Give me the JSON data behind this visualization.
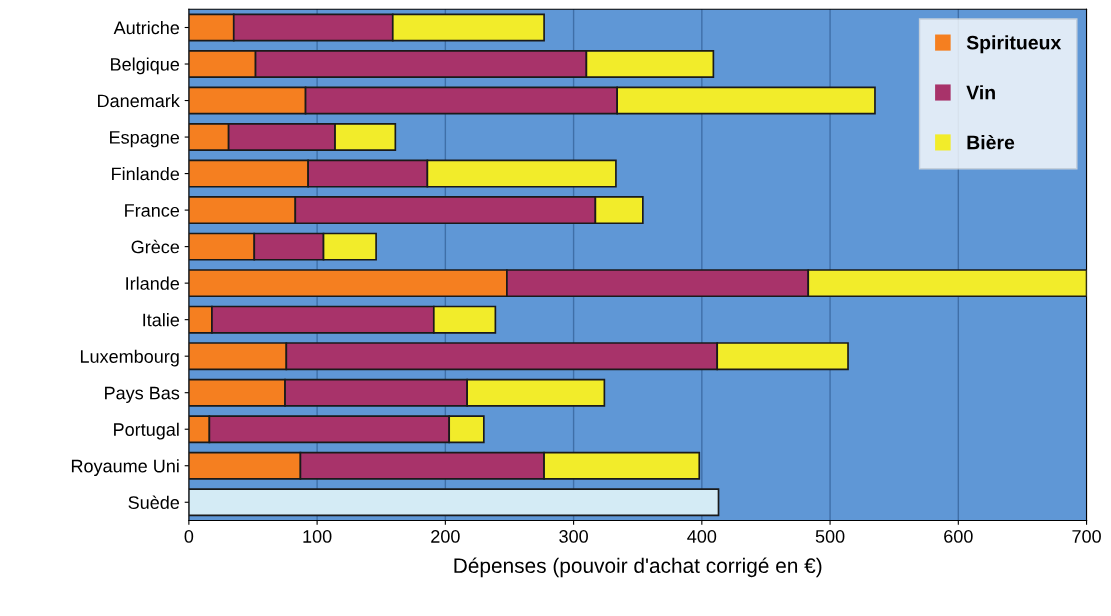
{
  "chart_data": {
    "type": "bar",
    "orientation": "horizontal",
    "stacked": true,
    "xlabel": "Dépenses (pouvoir d'achat corrigé en €)",
    "categories": [
      "Autriche",
      "Belgique",
      "Danemark",
      "Espagne",
      "Finlande",
      "France",
      "Grèce",
      "Irlande",
      "Italie",
      "Luxembourg",
      "Pays Bas",
      "Portugal",
      "Royaume Uni",
      "Suède"
    ],
    "series": [
      {
        "name": "Spiritueux",
        "color": "#f57f20",
        "values": [
          35,
          52,
          91,
          31,
          93,
          83,
          51,
          248,
          18,
          76,
          75,
          16,
          87,
          null
        ]
      },
      {
        "name": "Vin",
        "color": "#a8336a",
        "values": [
          124,
          258,
          243,
          83,
          93,
          234,
          54,
          235,
          173,
          336,
          142,
          187,
          190,
          null
        ]
      },
      {
        "name": "Bière",
        "color": "#f2ec2a",
        "values": [
          118,
          99,
          201,
          47,
          147,
          37,
          41,
          217,
          48,
          102,
          107,
          27,
          121,
          null
        ]
      },
      {
        "color": "#d4ebf5",
        "values": [
          null,
          null,
          null,
          null,
          null,
          null,
          null,
          null,
          null,
          null,
          null,
          null,
          null,
          413
        ]
      }
    ],
    "xlim": [
      0,
      700
    ],
    "xticks": [
      0,
      100,
      200,
      300,
      400,
      500,
      600,
      700
    ],
    "grid": "x",
    "legend": "top right"
  }
}
